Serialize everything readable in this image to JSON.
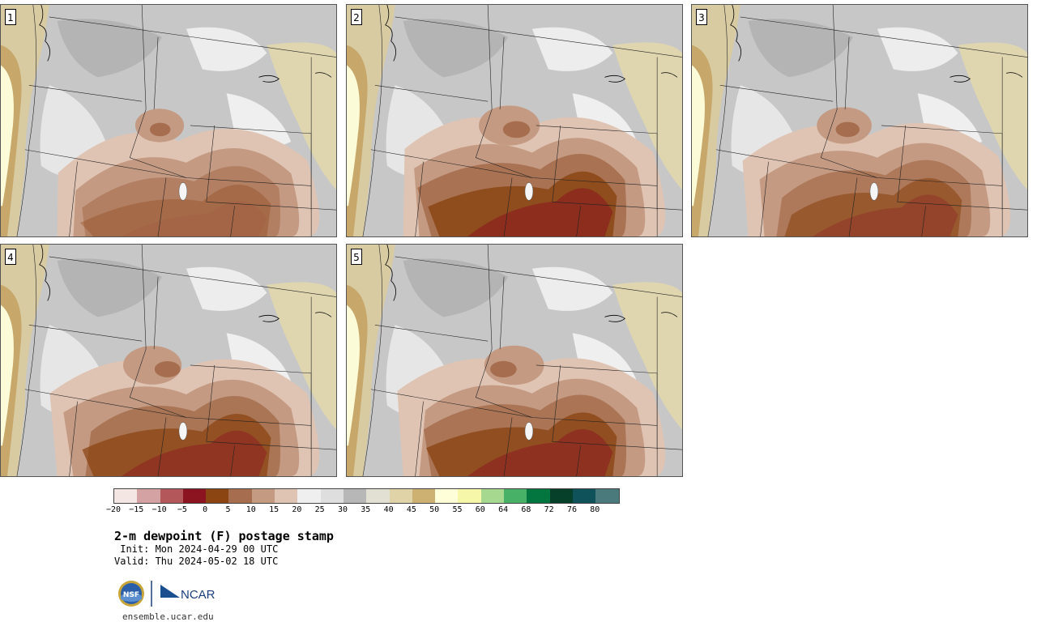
{
  "panels": [
    {
      "label": "1",
      "intensity": 0.35
    },
    {
      "label": "2",
      "intensity": 0.85
    },
    {
      "label": "3",
      "intensity": 0.6
    },
    {
      "label": "4",
      "intensity": 0.75
    },
    {
      "label": "5",
      "intensity": 0.8
    }
  ],
  "colorbar": {
    "colors": [
      "#f3e6e3",
      "#d4a2a2",
      "#b3575b",
      "#8b1420",
      "#8b4513",
      "#a66e4e",
      "#c49a83",
      "#e0c4b3",
      "#efefef",
      "#dedede",
      "#b7b7b7",
      "#e2e0d2",
      "#e1d3a8",
      "#cdb172",
      "#fefed9",
      "#f7f7a9",
      "#a6d98f",
      "#46b167",
      "#03753e",
      "#06402b",
      "#0f5259",
      "#4b7a7d"
    ],
    "tick_labels": [
      "−20",
      "−15",
      "−10",
      "−5",
      "0",
      "5",
      "10",
      "15",
      "20",
      "25",
      "30",
      "35",
      "40",
      "45",
      "50",
      "55",
      "60",
      "64",
      "68",
      "72",
      "76",
      "80"
    ]
  },
  "title": "2-m dewpoint (F) postage stamp",
  "init": " Init: Mon 2024-04-29 00 UTC",
  "valid": "Valid: Thu 2024-05-02 18 UTC",
  "logos": {
    "nsf": "NSF",
    "ncar": "NCAR"
  },
  "url": "ensemble.ucar.edu"
}
